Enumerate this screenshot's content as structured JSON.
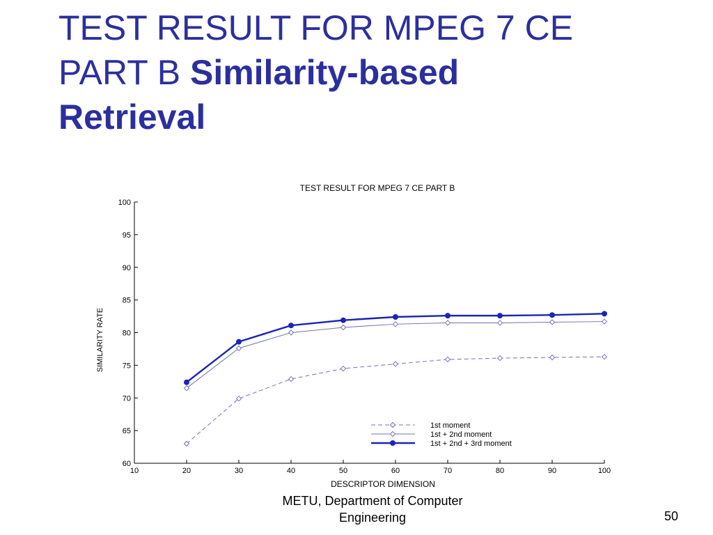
{
  "slide": {
    "title_line1": "TEST RESULT FOR MPEG 7 CE",
    "title_line2_plain": "PART B ",
    "title_line2_bold": "Similarity-based",
    "title_line3_bold": "Retrieval",
    "footer_line1": "METU, Department of Computer",
    "footer_line2": "Engineering",
    "page_number": "50"
  },
  "chart_data": {
    "type": "line",
    "title": "TEST RESULT FOR MPEG 7 CE PART B",
    "xlabel": "DESCRIPTOR DIMENSION",
    "ylabel": "SIMILARITY RATE",
    "xlim": [
      10,
      100
    ],
    "ylim": [
      60,
      100
    ],
    "x_ticks": [
      10,
      20,
      30,
      40,
      50,
      60,
      70,
      80,
      90,
      100
    ],
    "y_ticks": [
      60,
      65,
      70,
      75,
      80,
      85,
      90,
      95,
      100
    ],
    "grid": false,
    "legend_position": "bottom-right",
    "x": [
      20,
      30,
      40,
      50,
      60,
      70,
      80,
      90,
      100
    ],
    "series": [
      {
        "name": "1st moment",
        "values": [
          63.0,
          69.9,
          72.9,
          74.5,
          75.2,
          75.9,
          76.1,
          76.2,
          76.3
        ],
        "color": "#6f73b8",
        "line_style": "dashed",
        "marker": "open-diamond"
      },
      {
        "name": "1st + 2nd moment",
        "values": [
          71.5,
          77.6,
          80.0,
          80.8,
          81.3,
          81.5,
          81.5,
          81.6,
          81.7
        ],
        "color": "#6f73b8",
        "line_style": "solid",
        "marker": "open-diamond"
      },
      {
        "name": "1st + 2nd + 3rd moment",
        "values": [
          72.4,
          78.6,
          81.1,
          81.9,
          82.4,
          82.6,
          82.6,
          82.7,
          82.9
        ],
        "color": "#1c24b8",
        "line_style": "solid-thick",
        "marker": "filled-circle"
      }
    ]
  }
}
